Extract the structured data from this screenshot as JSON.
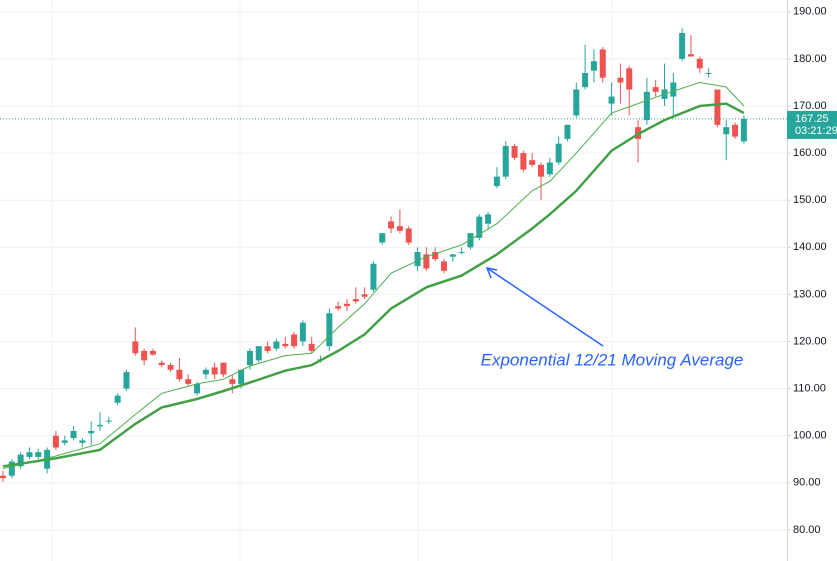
{
  "chart_data": {
    "type": "candlestick",
    "open": [
      91.5,
      91.5,
      93.5,
      95.5,
      95.5,
      93,
      100,
      98.5,
      99.5,
      98.5,
      100.5,
      102,
      103,
      107,
      110,
      120,
      118,
      118,
      115.5,
      115,
      114,
      112,
      109,
      113,
      114.5,
      115.5,
      112,
      111,
      115,
      116,
      119,
      118.5,
      119.5,
      121.5,
      120,
      119.5,
      116,
      119,
      127.5,
      128,
      129,
      130,
      131,
      141,
      145.5,
      144.5,
      144,
      136,
      138.5,
      139,
      137,
      138,
      139,
      140,
      142,
      145,
      153,
      155,
      161.5,
      160,
      158.5,
      157.5,
      155.5,
      158,
      163,
      168,
      174,
      177.5,
      182,
      170.5,
      176,
      178,
      165.5,
      167,
      174,
      171.5,
      172,
      180,
      181,
      180,
      177,
      173.5,
      164,
      166,
      162.5
    ],
    "high": [
      92.5,
      95,
      96.5,
      97.5,
      97.2,
      97.5,
      101,
      100,
      102,
      99.5,
      103,
      105,
      104,
      109,
      114,
      123,
      118.5,
      118.5,
      116,
      115.5,
      116.5,
      113,
      111.5,
      114.5,
      115.5,
      115.5,
      113,
      114,
      118.5,
      119,
      120,
      120.5,
      121,
      122,
      124.5,
      121,
      117,
      127,
      128.5,
      129,
      131.5,
      131.5,
      137,
      143,
      146.5,
      148,
      144.5,
      140,
      140,
      140,
      137.5,
      138.5,
      140,
      143,
      147,
      147.5,
      157,
      162.5,
      162,
      160.5,
      160,
      158,
      159,
      163.5,
      166,
      175,
      183,
      182,
      182.5,
      175,
      179,
      178.5,
      167,
      176,
      175.5,
      179,
      177,
      186.5,
      185,
      180.5,
      178,
      173.5,
      167,
      166.5,
      168
    ],
    "low": [
      90.2,
      91,
      93,
      95,
      95,
      92,
      97,
      98,
      99,
      97.5,
      98,
      101,
      102.5,
      106.5,
      109.5,
      117,
      115,
      117,
      114.5,
      113.5,
      111.5,
      110.5,
      108.5,
      112,
      112,
      112.5,
      109,
      110,
      114,
      115.5,
      117.5,
      118,
      118.5,
      118.5,
      119,
      117.5,
      115.5,
      118,
      126.5,
      126.5,
      128,
      129,
      130.5,
      140.5,
      143,
      143,
      140.5,
      135,
      135,
      137,
      134.5,
      137,
      138.5,
      139.5,
      141.5,
      144,
      152.5,
      154.5,
      158.5,
      156,
      157,
      150,
      155,
      157.5,
      162.5,
      167.5,
      173.5,
      175,
      175,
      168,
      170.5,
      168,
      158,
      166,
      172,
      170,
      168,
      179.5,
      180.5,
      177,
      176,
      165.5,
      158.5,
      163,
      162
    ],
    "close": [
      91,
      94.5,
      96,
      96.5,
      96.5,
      97,
      97.5,
      99,
      101,
      99,
      101,
      102.3,
      103.2,
      108.5,
      113.5,
      117.5,
      116,
      117.2,
      115,
      114,
      112,
      111,
      111,
      114,
      113,
      113,
      111,
      114,
      118,
      119,
      118,
      120,
      119,
      119,
      124,
      118,
      116.2,
      126,
      127,
      127.5,
      128.5,
      129.5,
      136.5,
      143,
      144,
      143.5,
      141,
      139,
      135.5,
      137.5,
      135,
      138.5,
      139,
      143,
      146.5,
      147,
      155,
      161.5,
      159,
      156.5,
      157.5,
      155,
      158,
      162,
      166,
      173.5,
      177,
      179.5,
      176,
      172,
      175,
      173.5,
      163,
      173,
      173,
      173.5,
      175,
      185.5,
      180.5,
      178,
      177,
      166,
      165.5,
      163.5,
      167.25
    ],
    "up_color": "#26a69a",
    "down_color": "#ef5350",
    "lines": [
      {
        "color": "#4caf50",
        "width": 1,
        "x": [
          0,
          6,
          11,
          15,
          18,
          22,
          25,
          28,
          32,
          35,
          38,
          41,
          44,
          48,
          52,
          56,
          60,
          62,
          65,
          69,
          72,
          75,
          79,
          82,
          84
        ],
        "values": [
          93,
          95.7,
          98.3,
          104.5,
          109,
          111,
          112,
          114.8,
          117,
          117.5,
          123,
          128,
          134.5,
          138,
          140.5,
          145,
          152,
          154,
          160,
          168.5,
          170.5,
          172.5,
          175,
          174,
          170
        ]
      },
      {
        "color": "#43a047",
        "width": 2.5,
        "x": [
          0,
          6,
          11,
          15,
          18,
          22,
          25,
          28,
          32,
          35,
          38,
          41,
          44,
          48,
          52,
          56,
          60,
          62,
          65,
          69,
          72,
          75,
          79,
          82,
          84
        ],
        "values": [
          93.5,
          95.2,
          97,
          102.5,
          106,
          107.8,
          109.5,
          111.3,
          113.8,
          115,
          118,
          121.5,
          127,
          131.5,
          134,
          138.5,
          144,
          147,
          152,
          160.5,
          164,
          167,
          170,
          170.5,
          168.5
        ]
      }
    ],
    "ylim": [
      73.4,
      192.5
    ],
    "yticks": [
      {
        "value": 80,
        "label": "80.00"
      },
      {
        "value": 90,
        "label": "90.00"
      },
      {
        "value": 100,
        "label": "100.00"
      },
      {
        "value": 110,
        "label": "110.00"
      },
      {
        "value": 120,
        "label": "120.00"
      },
      {
        "value": 130,
        "label": "130.00"
      },
      {
        "value": 140,
        "label": "140.00"
      },
      {
        "value": 150,
        "label": "150.00"
      },
      {
        "value": 160,
        "label": "160.00"
      },
      {
        "value": 170,
        "label": "170.00"
      },
      {
        "value": 180,
        "label": "180.00"
      },
      {
        "value": 190,
        "label": "190.00"
      }
    ],
    "grid": true,
    "last_price": 167.25,
    "countdown": "03:21:29",
    "annotation": "Exponential 12/21 Moving Average"
  }
}
